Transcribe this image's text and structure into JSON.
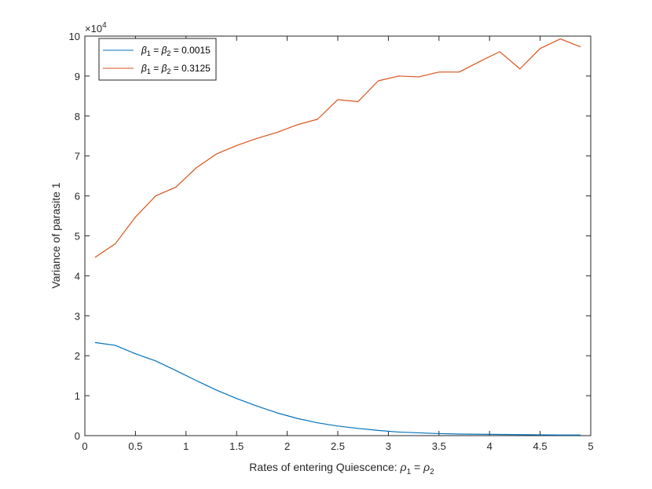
{
  "chart_data": {
    "type": "line",
    "xlabel": "Rates of entering Quiescence: ρ₁ = ρ₂",
    "xlabel_parts": {
      "prefix": "Rates of entering Quiescence: ",
      "sym1": "ρ",
      "sub1": "1",
      "eq": " = ",
      "sym2": "ρ",
      "sub2": "2"
    },
    "ylabel": "Variance of parasite 1",
    "y_exponent_label": "×10",
    "y_exponent": "4",
    "xlim": [
      0,
      5
    ],
    "ylim": [
      0,
      100000
    ],
    "x_ticks": [
      0,
      0.5,
      1,
      1.5,
      2,
      2.5,
      3,
      3.5,
      4,
      4.5,
      5
    ],
    "x_tick_labels": [
      "0",
      "0.5",
      "1",
      "1.5",
      "2",
      "2.5",
      "3",
      "3.5",
      "4",
      "4.5",
      "5"
    ],
    "y_ticks": [
      0,
      10000,
      20000,
      30000,
      40000,
      50000,
      60000,
      70000,
      80000,
      90000,
      100000
    ],
    "y_tick_labels": [
      "0",
      "1",
      "2",
      "3",
      "4",
      "5",
      "6",
      "7",
      "8",
      "9",
      "10"
    ],
    "grid": false,
    "legend_position": "top-left",
    "x": [
      0.1,
      0.3,
      0.5,
      0.7,
      0.9,
      1.1,
      1.3,
      1.5,
      1.7,
      1.9,
      2.1,
      2.3,
      2.5,
      2.7,
      2.9,
      3.1,
      3.3,
      3.5,
      3.7,
      3.9,
      4.1,
      4.3,
      4.5,
      4.7,
      4.9
    ],
    "series": [
      {
        "name": "β₁ = β₂ = 0.0015",
        "legend": {
          "sym1": "β",
          "sub1": "1",
          "eq1": " = ",
          "sym2": "β",
          "sub2": "2",
          "value": " = 0.0015"
        },
        "color": "#0072BD",
        "values": [
          23300,
          22600,
          20500,
          18700,
          16300,
          13800,
          11400,
          9300,
          7400,
          5700,
          4300,
          3200,
          2400,
          1800,
          1300,
          900,
          700,
          500,
          400,
          350,
          300,
          250,
          200,
          150,
          150
        ]
      },
      {
        "name": "β₁ = β₂ = 0.3125",
        "legend": {
          "sym1": "β",
          "sub1": "1",
          "eq1": " = ",
          "sym2": "β",
          "sub2": "2",
          "value": " = 0.3125"
        },
        "color": "#D95319",
        "values": [
          44600,
          48000,
          54700,
          60000,
          62200,
          67000,
          70500,
          72600,
          74400,
          75900,
          77800,
          79200,
          84100,
          83600,
          88800,
          90000,
          89800,
          91000,
          91000,
          93600,
          96100,
          91800,
          96900,
          99300,
          97300
        ]
      }
    ]
  }
}
